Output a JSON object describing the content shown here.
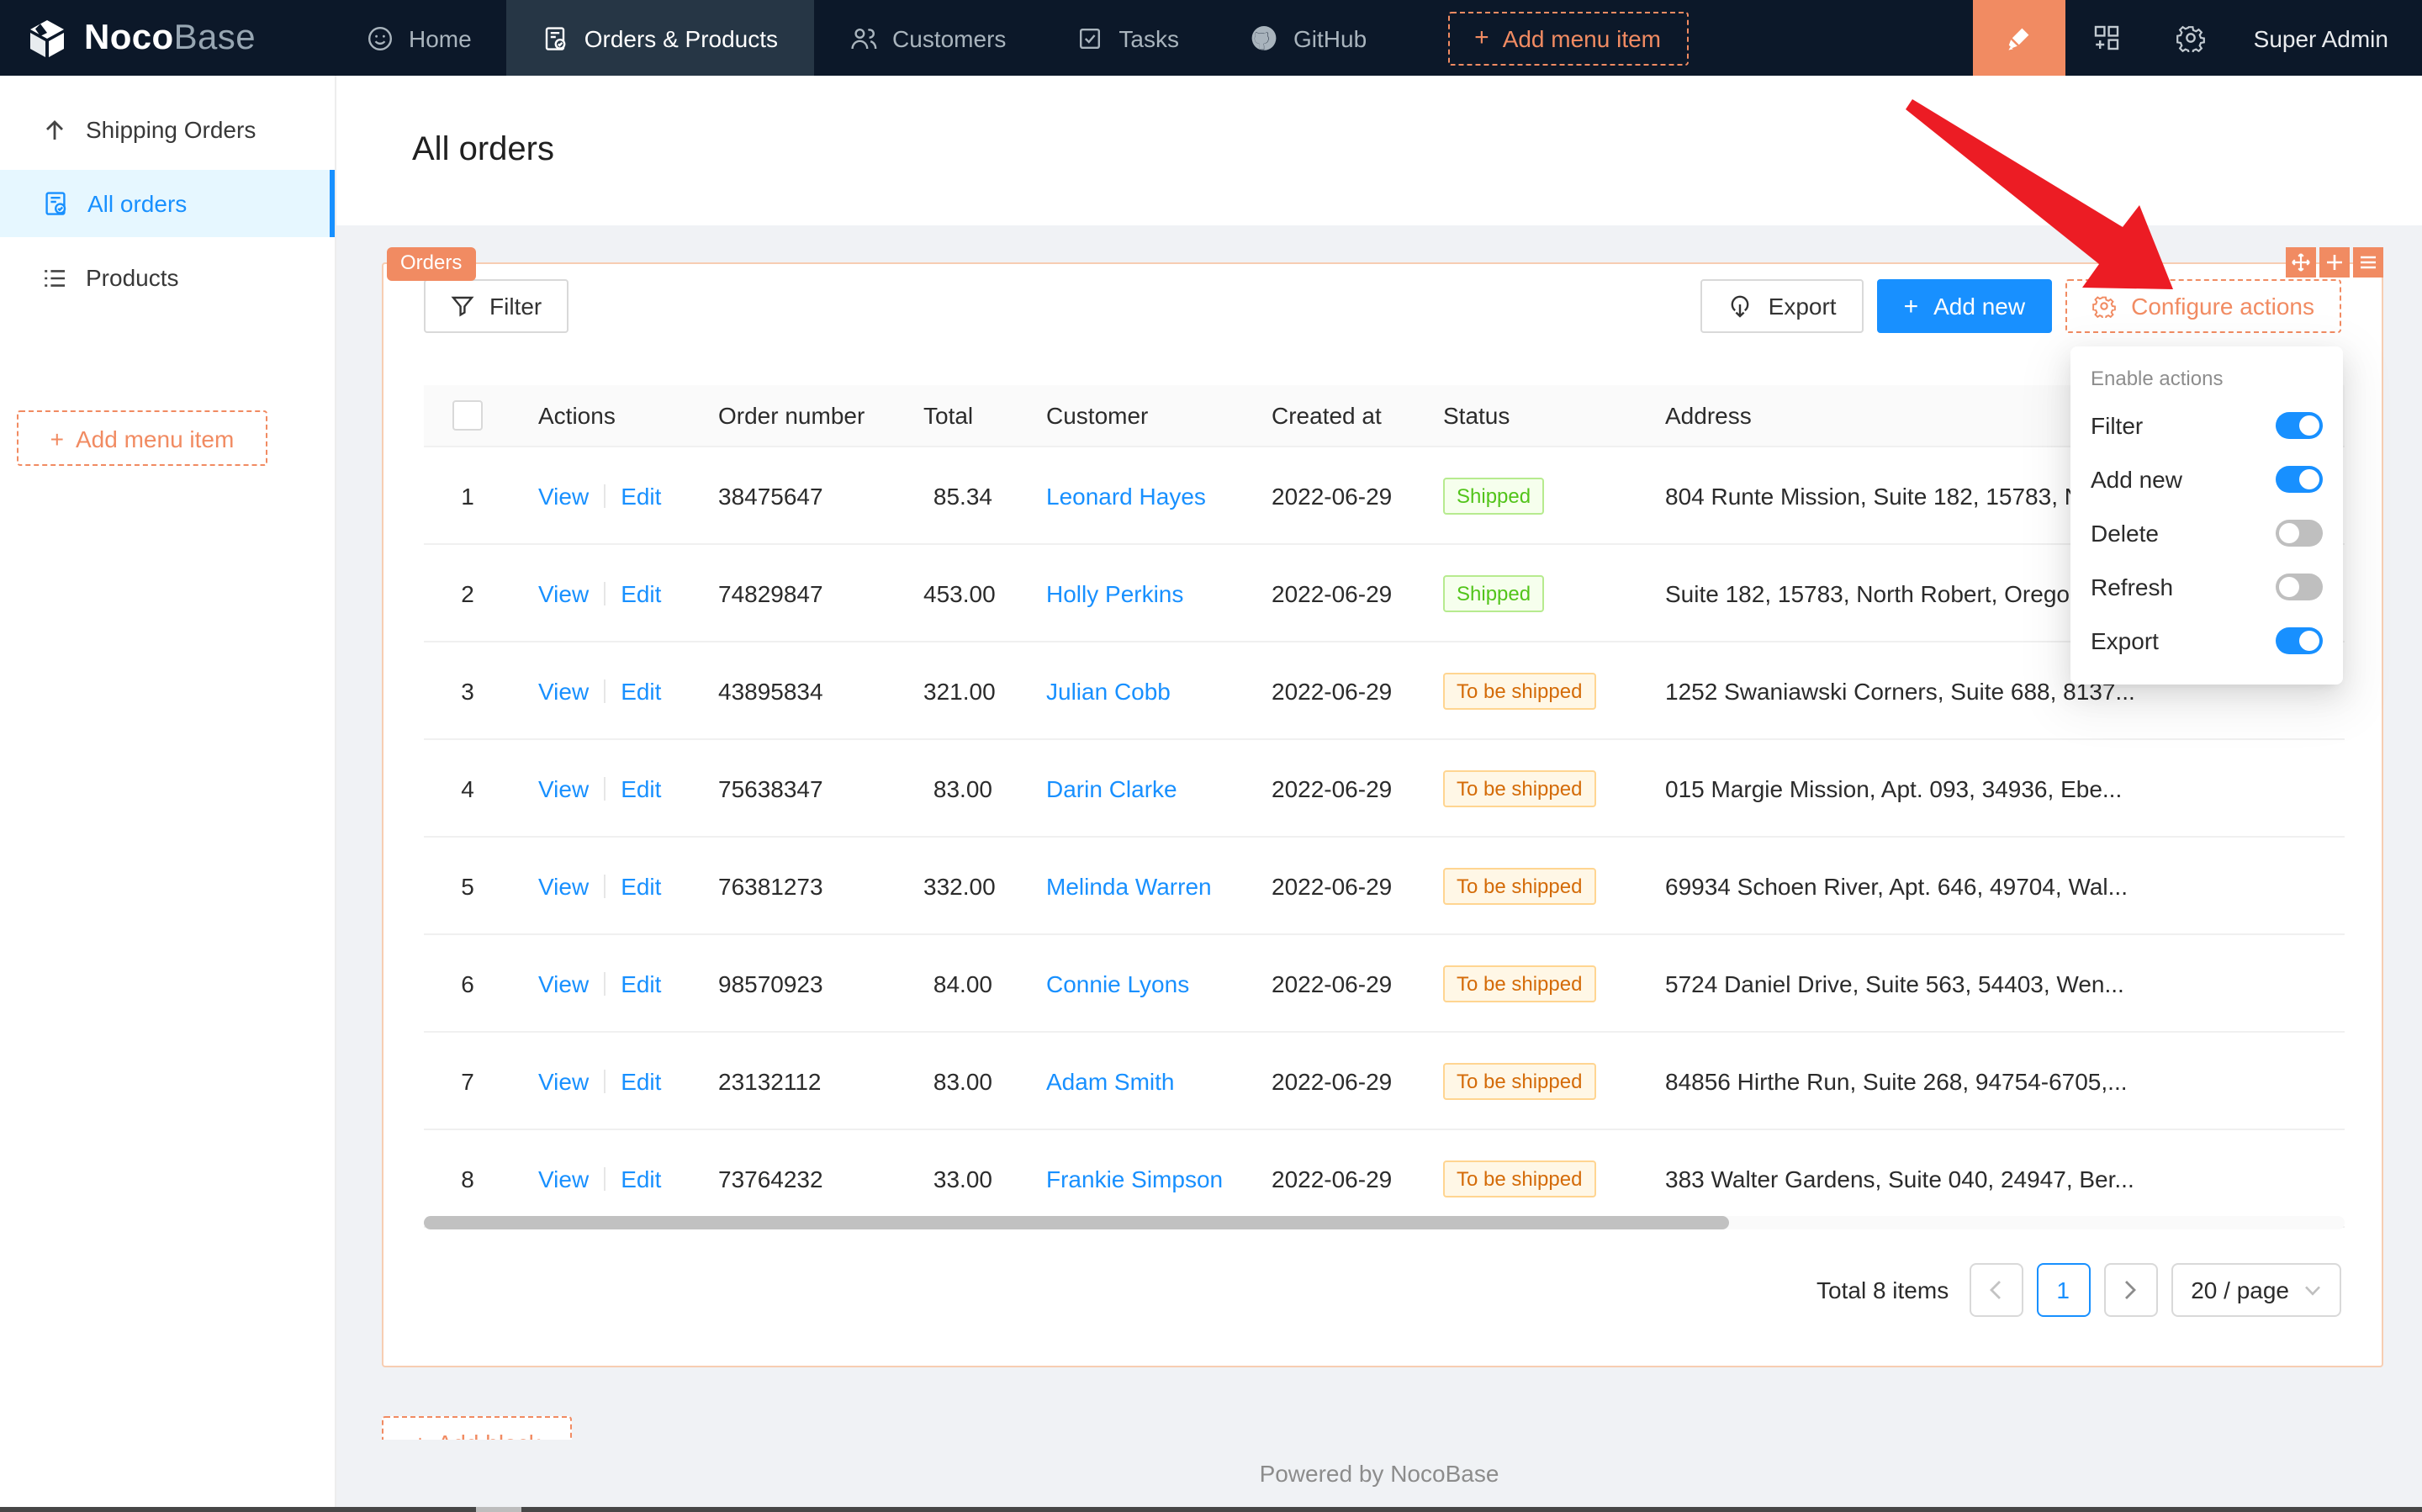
{
  "navbar": {
    "logo": {
      "bold": "Noco",
      "light": "Base"
    },
    "items": [
      {
        "label": "Home"
      },
      {
        "label": "Orders & Products"
      },
      {
        "label": "Customers"
      },
      {
        "label": "Tasks"
      },
      {
        "label": "GitHub"
      },
      {
        "label": "Add menu item"
      }
    ],
    "user": "Super Admin"
  },
  "sidebar": {
    "items": [
      {
        "label": "Shipping Orders"
      },
      {
        "label": "All orders"
      },
      {
        "label": "Products"
      }
    ],
    "add_button": "Add menu item"
  },
  "page": {
    "title": "All orders"
  },
  "block": {
    "tag": "Orders",
    "toolbar": {
      "filter": "Filter",
      "export": "Export",
      "add_new": "Add new",
      "configure": "Configure actions"
    },
    "table": {
      "columns": [
        "Actions",
        "Order number",
        "Total",
        "Customer",
        "Created at",
        "Status",
        "Address"
      ],
      "action_labels": {
        "view": "View",
        "edit": "Edit"
      },
      "rows": [
        {
          "index": "1",
          "order_number": "38475647",
          "total": "85.34",
          "customer": "Leonard Hayes",
          "created_at": "2022-06-29",
          "status": "Shipped",
          "address": "804 Runte Mission, Suite 182, 15783, No..."
        },
        {
          "index": "2",
          "order_number": "74829847",
          "total": "453.00",
          "customer": "Holly Perkins",
          "created_at": "2022-06-29",
          "status": "Shipped",
          "address": "Suite 182, 15783, North Robert, Oregon..."
        },
        {
          "index": "3",
          "order_number": "43895834",
          "total": "321.00",
          "customer": "Julian Cobb",
          "created_at": "2022-06-29",
          "status": "To be shipped",
          "address": "1252 Swaniawski Corners, Suite 688, 8137..."
        },
        {
          "index": "4",
          "order_number": "75638347",
          "total": "83.00",
          "customer": "Darin Clarke",
          "created_at": "2022-06-29",
          "status": "To be shipped",
          "address": "015 Margie Mission, Apt. 093, 34936, Ebe..."
        },
        {
          "index": "5",
          "order_number": "76381273",
          "total": "332.00",
          "customer": "Melinda Warren",
          "created_at": "2022-06-29",
          "status": "To be shipped",
          "address": "69934 Schoen River, Apt. 646, 49704, Wal..."
        },
        {
          "index": "6",
          "order_number": "98570923",
          "total": "84.00",
          "customer": "Connie Lyons",
          "created_at": "2022-06-29",
          "status": "To be shipped",
          "address": "5724 Daniel Drive, Suite 563, 54403, Wen..."
        },
        {
          "index": "7",
          "order_number": "23132112",
          "total": "83.00",
          "customer": "Adam Smith",
          "created_at": "2022-06-29",
          "status": "To be shipped",
          "address": "84856 Hirthe Run, Suite 268, 94754-6705,..."
        },
        {
          "index": "8",
          "order_number": "73764232",
          "total": "33.00",
          "customer": "Frankie Simpson",
          "created_at": "2022-06-29",
          "status": "To be shipped",
          "address": "383 Walter Gardens, Suite 040, 24947, Ber..."
        }
      ]
    },
    "pagination": {
      "total": "Total 8 items",
      "page": "1",
      "page_size": "20 / page"
    }
  },
  "dropdown": {
    "title": "Enable actions",
    "items": [
      {
        "label": "Filter",
        "enabled": true
      },
      {
        "label": "Add new",
        "enabled": true
      },
      {
        "label": "Delete",
        "enabled": false
      },
      {
        "label": "Refresh",
        "enabled": false
      },
      {
        "label": "Export",
        "enabled": true
      }
    ]
  },
  "add_block_label": "Add block",
  "footer": "Powered by NocoBase",
  "colors": {
    "navbar_bg": "#0c1829",
    "designer_orange": "#f18b62",
    "primary_blue": "#1890ff",
    "status_shipped": "#52c41a",
    "status_to_be_shipped": "#d46b08",
    "arrow_red": "#ec1c24"
  }
}
